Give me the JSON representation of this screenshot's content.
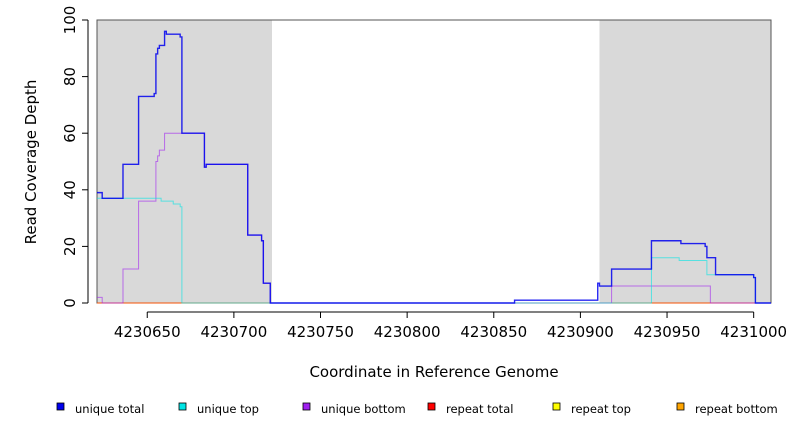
{
  "chart_data": {
    "type": "line",
    "title": "",
    "xlabel": "Coordinate in Reference Genome",
    "ylabel": "Read Coverage Depth",
    "xlim": [
      4230621,
      4231010
    ],
    "ylim": [
      0,
      100
    ],
    "x_ticks": [
      4230650,
      4230700,
      4230750,
      4230800,
      4230850,
      4230900,
      4230950,
      4231000
    ],
    "x_tick_labels": [
      "4230650",
      "4230700",
      "4230750",
      "4230800",
      "4230850",
      "4230900",
      "4230950",
      "4231000"
    ],
    "y_ticks": [
      0,
      20,
      40,
      60,
      80,
      100
    ],
    "y_tick_labels": [
      "0",
      "20",
      "40",
      "60",
      "80",
      "100"
    ],
    "shaded_regions": [
      {
        "x0": 4230621,
        "x1": 4230722
      },
      {
        "x0": 4230911,
        "x1": 4231010
      }
    ],
    "series": [
      {
        "name": "unique total",
        "color": "#0000ee",
        "step": [
          [
            4230621,
            39
          ],
          [
            4230624,
            37
          ],
          [
            4230636,
            49
          ],
          [
            4230645,
            73
          ],
          [
            4230654,
            74
          ],
          [
            4230655,
            88
          ],
          [
            4230656,
            90
          ],
          [
            4230657,
            91
          ],
          [
            4230660,
            96
          ],
          [
            4230661,
            95
          ],
          [
            4230669,
            94
          ],
          [
            4230670,
            60
          ],
          [
            4230683,
            48
          ],
          [
            4230684,
            49
          ],
          [
            4230708,
            24
          ],
          [
            4230716,
            22
          ],
          [
            4230717,
            7
          ],
          [
            4230721,
            0
          ],
          [
            4230861,
            0
          ],
          [
            4230862,
            1
          ],
          [
            4230910,
            7
          ],
          [
            4230911,
            6
          ],
          [
            4230918,
            12
          ],
          [
            4230941,
            22
          ],
          [
            4230958,
            21
          ],
          [
            4230972,
            20
          ],
          [
            4230973,
            16
          ],
          [
            4230978,
            10
          ],
          [
            4231000,
            9
          ],
          [
            4231001,
            0
          ],
          [
            4231010,
            0
          ]
        ]
      },
      {
        "name": "unique top",
        "color": "#00e5e5",
        "step": [
          [
            4230621,
            37
          ],
          [
            4230656,
            37
          ],
          [
            4230658,
            36
          ],
          [
            4230665,
            35
          ],
          [
            4230669,
            34
          ],
          [
            4230670,
            0
          ],
          [
            4230941,
            16
          ],
          [
            4230957,
            15
          ],
          [
            4230973,
            10
          ],
          [
            4231000,
            9
          ],
          [
            4231001,
            0
          ],
          [
            4231010,
            0
          ]
        ]
      },
      {
        "name": "unique bottom",
        "color": "#a020f0",
        "step": [
          [
            4230621,
            2
          ],
          [
            4230624,
            0
          ],
          [
            4230636,
            12
          ],
          [
            4230645,
            36
          ],
          [
            4230655,
            50
          ],
          [
            4230656,
            52
          ],
          [
            4230657,
            54
          ],
          [
            4230660,
            60
          ],
          [
            4230683,
            48
          ],
          [
            4230684,
            49
          ],
          [
            4230708,
            24
          ],
          [
            4230716,
            22
          ],
          [
            4230717,
            7
          ],
          [
            4230721,
            0
          ],
          [
            4230911,
            0
          ],
          [
            4230918,
            6
          ],
          [
            4230975,
            0
          ],
          [
            4231010,
            0
          ]
        ]
      },
      {
        "name": "repeat total",
        "color": "#ff0000",
        "step": [
          [
            4230621,
            0
          ],
          [
            4231010,
            0
          ]
        ]
      },
      {
        "name": "repeat top",
        "color": "#ffff00",
        "step": [
          [
            4230621,
            0
          ],
          [
            4231010,
            0
          ]
        ]
      },
      {
        "name": "repeat bottom",
        "color": "#ffa500",
        "step": [
          [
            4230621,
            0
          ],
          [
            4231010,
            0
          ]
        ]
      }
    ],
    "legend_position": "bottom"
  }
}
